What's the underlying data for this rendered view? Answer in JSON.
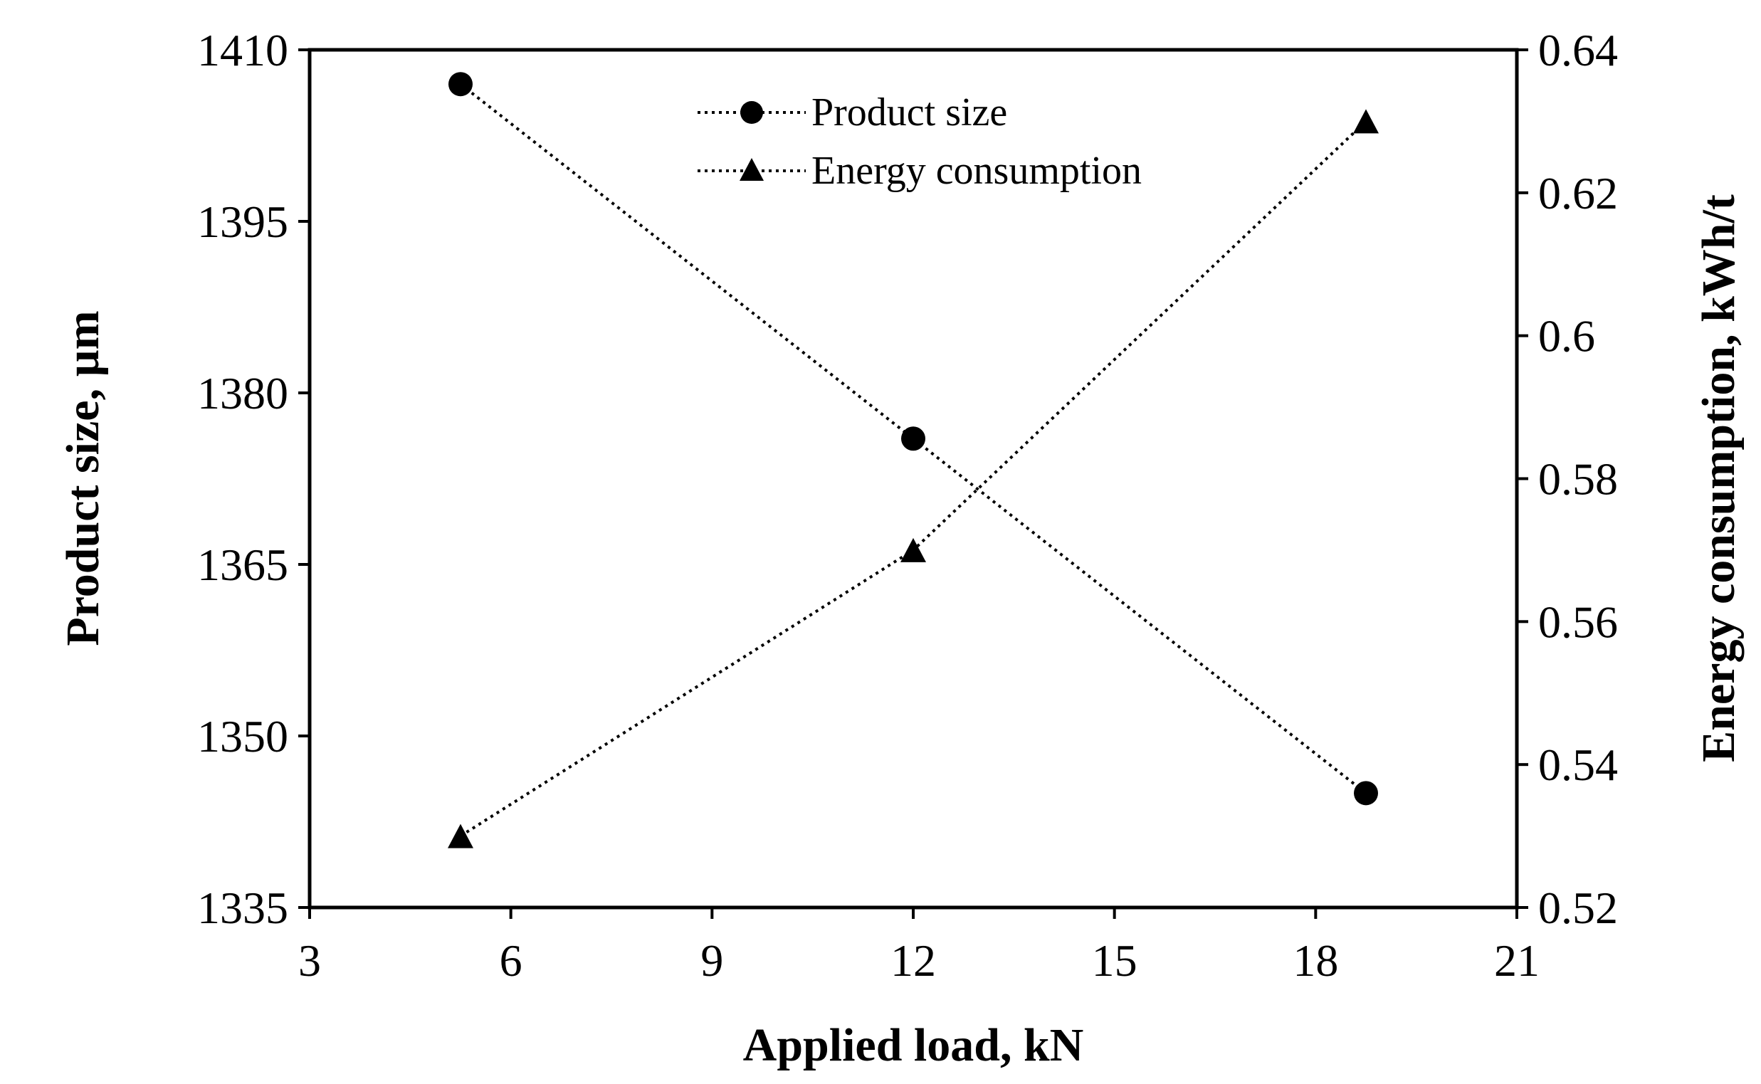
{
  "chart_data": {
    "type": "line",
    "title": "",
    "xlabel": "Applied load, kN",
    "ylabel": "Product size, µm",
    "y2label": "Energy consumption, kWh/t",
    "xlim": [
      3,
      21
    ],
    "ylim": [
      1335,
      1410
    ],
    "y2lim": [
      0.52,
      0.64
    ],
    "x_ticks": [
      "3",
      "6",
      "9",
      "12",
      "15",
      "18",
      "21"
    ],
    "y_ticks": [
      "1335",
      "1350",
      "1365",
      "1380",
      "1395",
      "1410"
    ],
    "y2_ticks": [
      "0.52",
      "0.54",
      "0.56",
      "0.58",
      "0.6",
      "0.62",
      "0.64"
    ],
    "grid": false,
    "legend_position": "top-center",
    "series": [
      {
        "name": "Product size",
        "axis": "left",
        "marker": "circle",
        "line_style": "dotted",
        "x": [
          5.25,
          12,
          18.75
        ],
        "values": [
          1407,
          1376,
          1345
        ]
      },
      {
        "name": "Energy consumption",
        "axis": "right",
        "marker": "triangle",
        "line_style": "dotted",
        "x": [
          5.25,
          12,
          18.75
        ],
        "values": [
          0.53,
          0.57,
          0.63
        ]
      }
    ]
  },
  "colors": {
    "ink": "#000000",
    "background": "#ffffff"
  }
}
